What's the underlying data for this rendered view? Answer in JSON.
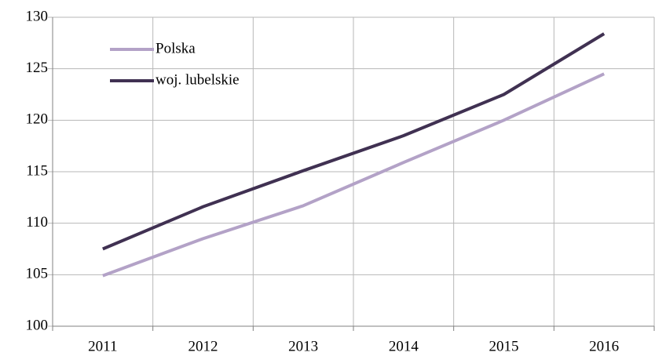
{
  "chart_data": {
    "type": "line",
    "categories": [
      "2011",
      "2012",
      "2013",
      "2014",
      "2015",
      "2016"
    ],
    "series": [
      {
        "name": "Polska",
        "color": "#b3a2c7",
        "values": [
          104.9,
          108.5,
          111.7,
          115.9,
          120.0,
          124.5
        ]
      },
      {
        "name": "woj. lubelskie",
        "color": "#403152",
        "values": [
          107.5,
          111.6,
          115.1,
          118.5,
          122.5,
          128.4
        ]
      }
    ],
    "ylim": [
      100,
      130
    ],
    "yticks": [
      100,
      105,
      110,
      115,
      120,
      125,
      130
    ],
    "grid": true,
    "legend": "top-left"
  }
}
